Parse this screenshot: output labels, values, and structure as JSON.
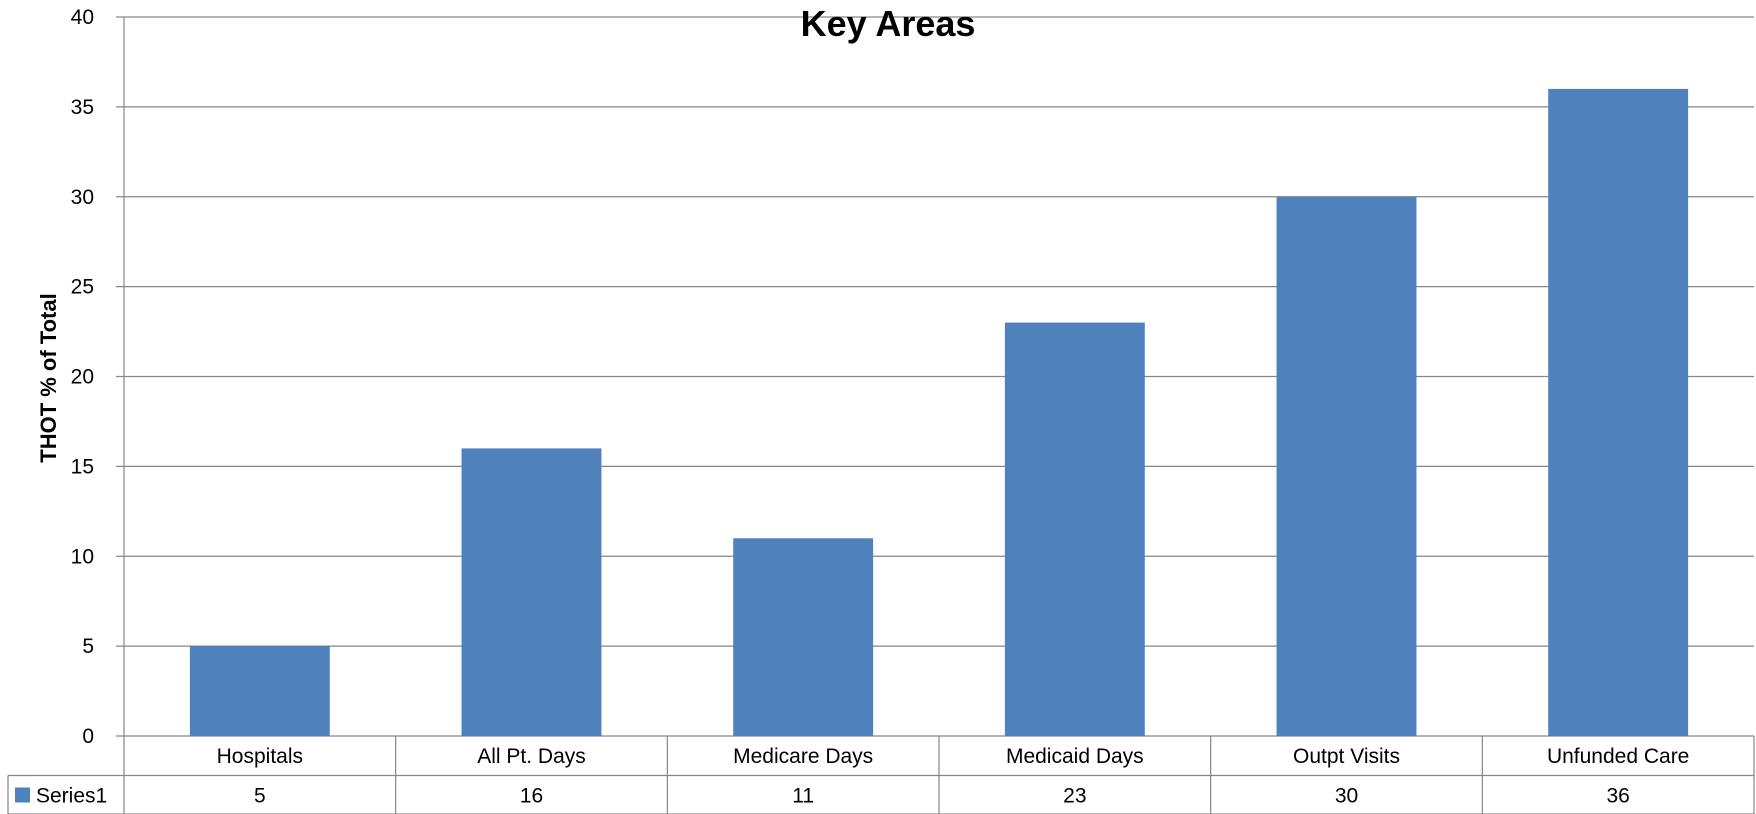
{
  "chart_data": {
    "type": "bar",
    "title": "Key Areas",
    "xlabel": "",
    "ylabel": "THOT % of Total",
    "ylim": [
      0,
      40
    ],
    "ytick_step": 5,
    "yticks": [
      0,
      5,
      10,
      15,
      20,
      25,
      30,
      35,
      40
    ],
    "grid": true,
    "legend_placement": "data-table",
    "categories": [
      "Hospitals",
      "All Pt. Days",
      "Medicare Days",
      "Medicaid Days",
      "Outpt Visits",
      "Unfunded Care"
    ],
    "series": [
      {
        "name": "Series1",
        "color": "#4F81BD",
        "values": [
          5,
          16,
          11,
          23,
          30,
          36
        ]
      }
    ]
  }
}
